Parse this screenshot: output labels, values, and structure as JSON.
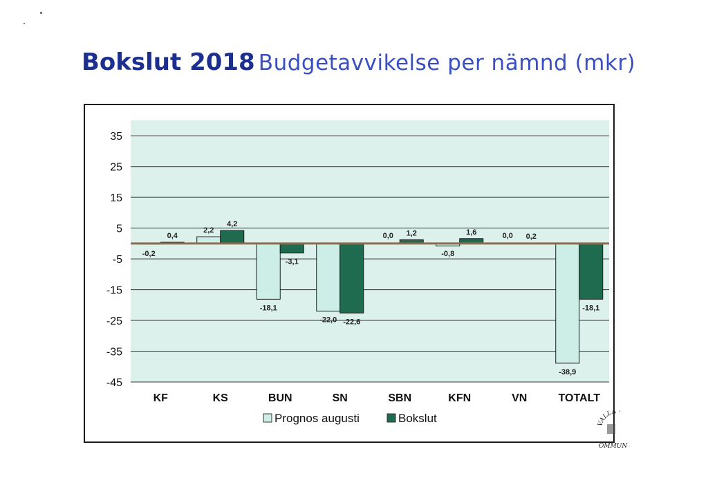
{
  "header": {
    "title_main": "Bokslut 2018",
    "title_sub": "Budgetavvikelse per nämnd (mkr)"
  },
  "colors": {
    "series_1": "#cdeee6",
    "series_2": "#1e6b4f",
    "plot_bg": "#dcf1ec",
    "zero_line": "#8a6e52",
    "title_dark": "#1c2f8f",
    "title_light": "#3a4fc0"
  },
  "chart_data": {
    "type": "bar",
    "categories": [
      "KF",
      "KS",
      "BUN",
      "SN",
      "SBN",
      "KFN",
      "VN",
      "TOTALT"
    ],
    "series": [
      {
        "name": "Prognos augusti",
        "values": [
          -0.2,
          2.2,
          -18.1,
          -22.0,
          0.0,
          -0.8,
          0.0,
          -38.9
        ],
        "labels": [
          "-0,2",
          "2,2",
          "-18,1",
          "-22,0",
          "0,0",
          "-0,8",
          "0,0",
          "-38,9"
        ]
      },
      {
        "name": "Bokslut",
        "values": [
          0.4,
          4.2,
          -3.1,
          -22.6,
          1.2,
          1.6,
          0.2,
          -18.1
        ],
        "labels": [
          "0,4",
          "4,2",
          "-3,1",
          "-22,6",
          "1,2",
          "1,6",
          "0,2",
          "-18,1"
        ]
      }
    ],
    "yticks": [
      35,
      25,
      15,
      5,
      -5,
      -15,
      -25,
      -35,
      -45
    ],
    "ylim": [
      -45,
      40
    ],
    "grid": true,
    "legend_position": "bottom"
  },
  "seal": {
    "text": "VALLA KOMMUN"
  }
}
